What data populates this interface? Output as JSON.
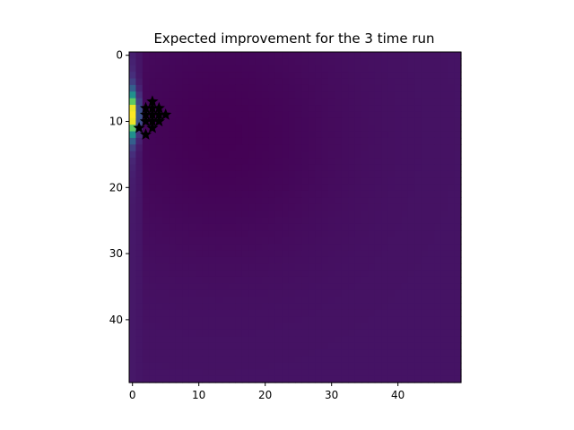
{
  "chart_data": {
    "type": "heatmap",
    "title": "Expected improvement for the 3 time run",
    "xlabel": "",
    "ylabel": "",
    "rows": 50,
    "cols": 50,
    "xlim": [
      -0.5,
      49.5
    ],
    "ylim": [
      49.5,
      -0.5
    ],
    "x_ticks": [
      0,
      10,
      20,
      30,
      40
    ],
    "y_ticks": [
      0,
      10,
      20,
      30,
      40
    ],
    "colormap": "viridis",
    "value_range": [
      0,
      1
    ],
    "grid": false,
    "legend": "none",
    "field": {
      "baseline": 0.055,
      "dip_center": [
        13,
        12
      ],
      "dip_depth": 0.055,
      "dip_spread": 14,
      "left_column_peak": {
        "col": 0,
        "row_center": 9,
        "row_spread": 2.2,
        "peak": 0.92
      },
      "second_column_peak": {
        "col": 1,
        "peak": 0.2
      }
    },
    "markers": {
      "symbol": "star",
      "color": "#000000",
      "points": [
        [
          1,
          11
        ],
        [
          2,
          12
        ],
        [
          3,
          11
        ],
        [
          2,
          9
        ],
        [
          3,
          9
        ],
        [
          2,
          8
        ],
        [
          3,
          7
        ],
        [
          3,
          8
        ],
        [
          4,
          8
        ],
        [
          4,
          10
        ],
        [
          5,
          9
        ],
        [
          4,
          9
        ],
        [
          3,
          10
        ],
        [
          2,
          10
        ]
      ]
    }
  }
}
